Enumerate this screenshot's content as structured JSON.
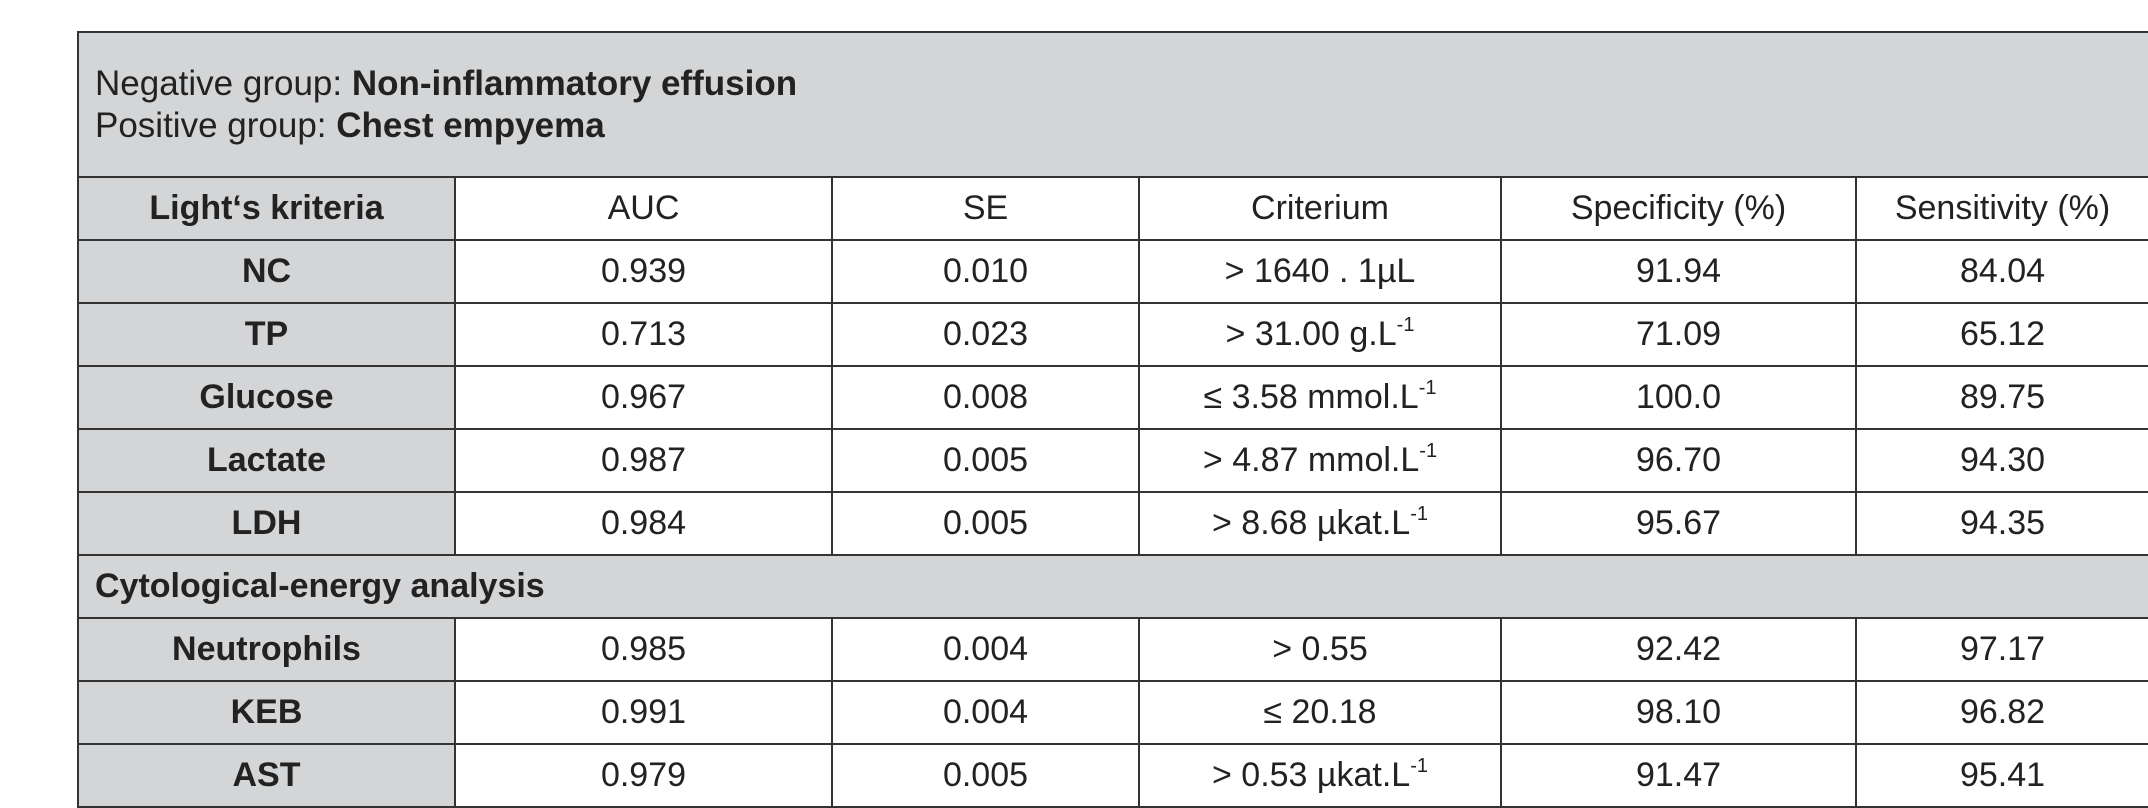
{
  "header": {
    "negative_prefix": "Negative group: ",
    "negative_value": "Non-inflammatory effusion",
    "positive_prefix": "Positive group: ",
    "positive_value": "Chest empyema"
  },
  "columns": [
    "Light‘s kriteria",
    "AUC",
    "SE",
    "Criterium",
    "Specificity (%)",
    "Sensitivity (%)"
  ],
  "section1_rows": [
    {
      "name": "NC",
      "auc": "0.939",
      "se": "0.010",
      "crit": "> 1640 . 1µL",
      "sup": "",
      "spec": "91.94",
      "sens": "84.04"
    },
    {
      "name": "TP",
      "auc": "0.713",
      "se": "0.023",
      "crit": "> 31.00 g.L",
      "sup": "-1",
      "spec": "71.09",
      "sens": "65.12"
    },
    {
      "name": "Glucose",
      "auc": "0.967",
      "se": "0.008",
      "crit": "≤ 3.58 mmol.L",
      "sup": "-1",
      "spec": "100.0",
      "sens": "89.75"
    },
    {
      "name": "Lactate",
      "auc": "0.987",
      "se": "0.005",
      "crit": "> 4.87 mmol.L",
      "sup": "-1",
      "spec": "96.70",
      "sens": "94.30"
    },
    {
      "name": "LDH",
      "auc": "0.984",
      "se": "0.005",
      "crit": "> 8.68 µkat.L",
      "sup": "-1",
      "spec": "95.67",
      "sens": "94.35"
    }
  ],
  "section2_title": "Cytological-energy analysis",
  "section2_rows": [
    {
      "name": "Neutrophils",
      "auc": "0.985",
      "se": "0.004",
      "crit": "> 0.55",
      "sup": "",
      "spec": "92.42",
      "sens": "97.17"
    },
    {
      "name": "KEB",
      "auc": "0.991",
      "se": "0.004",
      "crit": "≤ 20.18",
      "sup": "",
      "spec": "98.10",
      "sens": "96.82"
    },
    {
      "name": "AST",
      "auc": "0.979",
      "se": "0.005",
      "crit": "> 0.53 µkat.L",
      "sup": "-1",
      "spec": "91.47",
      "sens": "95.41"
    }
  ]
}
